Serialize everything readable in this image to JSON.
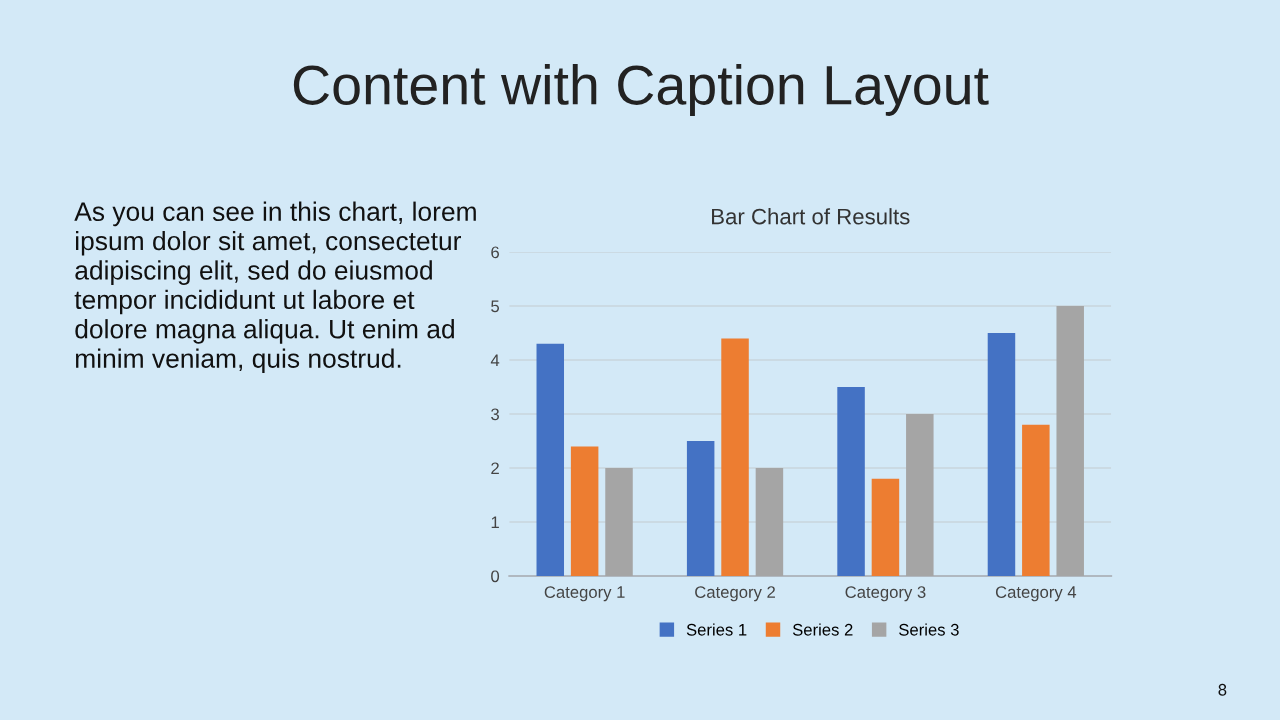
{
  "chart_data": {
    "type": "bar",
    "title": "Content with Caption Layout",
    "subtitle": "Bar Chart of Results",
    "categories": [
      "Category 1",
      "Category 2",
      "Category 3",
      "Category 4"
    ],
    "series": [
      {
        "name": "Series 1",
        "color": "#4472c4",
        "values": [
          4.3,
          2.5,
          3.5,
          4.5
        ]
      },
      {
        "name": "Series 2",
        "color": "#ed7d31",
        "values": [
          2.4,
          4.4,
          1.8,
          2.8
        ]
      },
      {
        "name": "Series 3",
        "color": "#a5a5a5",
        "values": [
          2,
          2,
          3,
          5
        ]
      }
    ],
    "ylim": [
      0,
      6
    ],
    "yticks": [
      0,
      1,
      2,
      3,
      4,
      5,
      6
    ],
    "grid": "y",
    "legend": "bottom",
    "annotations": [
      "As you can see in this chart, lorem\nipsum dolor sit amet, consectetur\nadipiscing elit, sed do eiusmod\ntempor incididunt ut labore et\ndolore magna aliqua. Ut enim ad\nminim veniam, quis nostrud.",
      "8"
    ]
  }
}
